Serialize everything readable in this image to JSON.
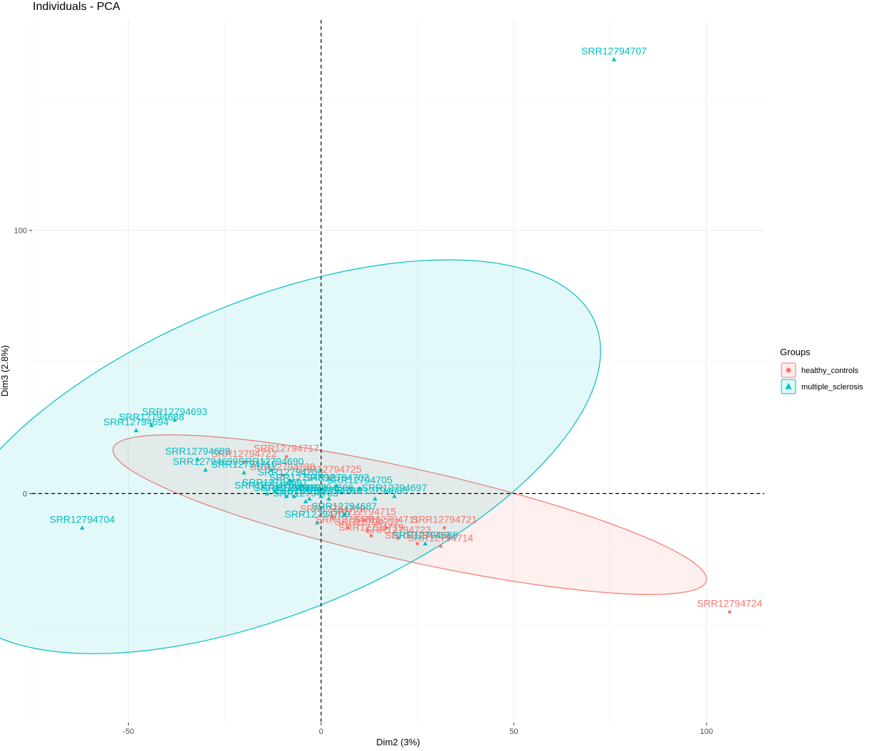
{
  "chart_data": {
    "type": "scatter",
    "title": "Individuals - PCA",
    "xlabel": "Dim2 (3%)",
    "ylabel": "Dim3 (2.8%)",
    "xlim": [
      -75,
      115
    ],
    "ylim": [
      -87,
      180
    ],
    "x_ticks": [
      -50,
      0,
      50,
      100
    ],
    "y_ticks": [
      0,
      100
    ],
    "grid": true,
    "reference_lines": {
      "x": 0,
      "y": 0,
      "style": "dashed"
    },
    "legend": {
      "title": "Groups",
      "position": "right"
    },
    "series": [
      {
        "name": "healthy_controls",
        "color": "#F8766D",
        "marker": "circle",
        "ellipse": {
          "center": [
            23,
            -8
          ],
          "semi_axes": [
            81,
            17
          ],
          "angle_deg": -18.5
        },
        "points": [
          {
            "label": "SRR12794724",
            "x": 106,
            "y": -45
          },
          {
            "label": "SRR12794717",
            "x": -9,
            "y": 14
          },
          {
            "label": "SRR12794722",
            "x": -20,
            "y": 12
          },
          {
            "label": "SRR12794721",
            "x": 32,
            "y": -13
          },
          {
            "label": "SRR12794714",
            "x": 31,
            "y": -20
          },
          {
            "label": "SRR12794713",
            "x": 25,
            "y": -19
          },
          {
            "label": "SRR12794711",
            "x": 17,
            "y": -13
          },
          {
            "label": "SRR12794715",
            "x": 11,
            "y": -10
          },
          {
            "label": "SRR12794720",
            "x": -10,
            "y": 7
          },
          {
            "label": "SRR12794725",
            "x": 2,
            "y": 6
          },
          {
            "label": "SRR12794712",
            "x": 12,
            "y": -14
          },
          {
            "label": "SRR12794716",
            "x": 7,
            "y": -13
          },
          {
            "label": "SRR12794718",
            "x": 3,
            "y": -9
          },
          {
            "label": "SRR12794719",
            "x": 13,
            "y": -16
          },
          {
            "label": "SRR12794723",
            "x": 20,
            "y": -17
          }
        ]
      },
      {
        "name": "multiple_sclerosis",
        "color": "#00BFC4",
        "marker": "triangle",
        "ellipse": {
          "center": [
            -13,
            14
          ],
          "semi_axes": [
            100,
            54
          ],
          "angle_deg": 38
        },
        "points": [
          {
            "label": "SRR12794707",
            "x": 76,
            "y": 165
          },
          {
            "label": "SRR12794704",
            "x": -62,
            "y": -13
          },
          {
            "label": "SRR12794693",
            "x": -38,
            "y": 28
          },
          {
            "label": "SRR12794688",
            "x": -44,
            "y": 26
          },
          {
            "label": "SRR12794694",
            "x": -48,
            "y": 24
          },
          {
            "label": "SRR12794689",
            "x": -32,
            "y": 13
          },
          {
            "label": "SRR12794699",
            "x": -30,
            "y": 9
          },
          {
            "label": "SRR12794690",
            "x": -13,
            "y": 9
          },
          {
            "label": "SRR12794705",
            "x": 10,
            "y": 2
          },
          {
            "label": "SRR12794697",
            "x": 19,
            "y": -1
          },
          {
            "label": "SRR12794685",
            "x": 14,
            "y": -2
          },
          {
            "label": "SRR12794686",
            "x": 27,
            "y": -19
          },
          {
            "label": "SRR12794691",
            "x": -12,
            "y": 1
          },
          {
            "label": "SRR12794692",
            "x": -5,
            "y": 3
          },
          {
            "label": "SRR12794695",
            "x": -9,
            "y": -1
          },
          {
            "label": "SRR12794696",
            "x": 0,
            "y": -1
          },
          {
            "label": "SRR12794698",
            "x": -7,
            "y": -1
          },
          {
            "label": "SRR12794700",
            "x": -14,
            "y": 0
          },
          {
            "label": "SRR12794701",
            "x": 2,
            "y": -2
          },
          {
            "label": "SRR12794702",
            "x": 4,
            "y": 3
          },
          {
            "label": "SRR12794703",
            "x": -4,
            "y": -3
          },
          {
            "label": "SRR12794706",
            "x": -3,
            "y": -2
          },
          {
            "label": "SRR12794708",
            "x": -8,
            "y": 5
          },
          {
            "label": "SRR12794709",
            "x": -1,
            "y": -11
          },
          {
            "label": "SRR12794710",
            "x": -20,
            "y": 8
          },
          {
            "label": "SRR12794687",
            "x": 6,
            "y": -8
          }
        ]
      }
    ]
  }
}
